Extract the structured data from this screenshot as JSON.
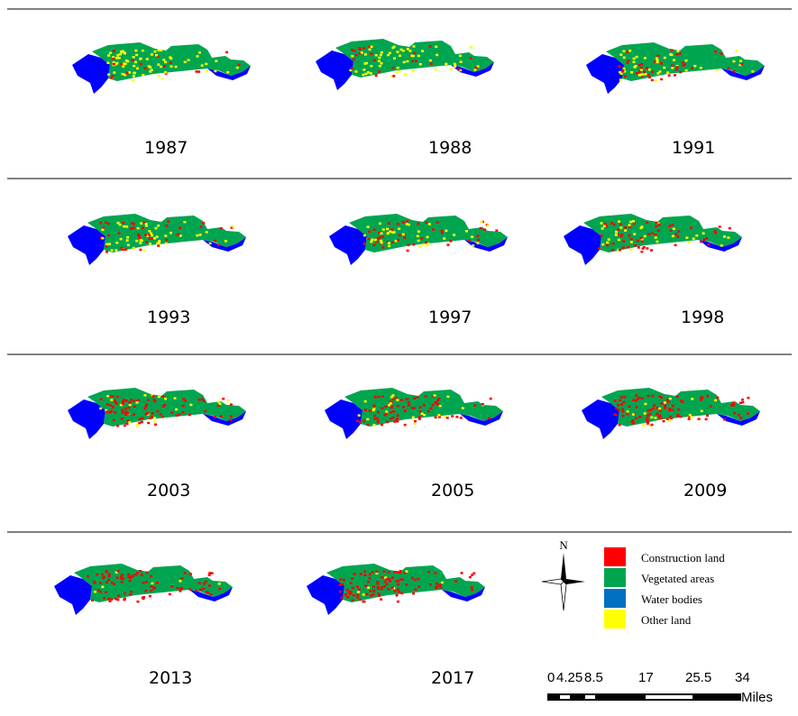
{
  "maps": [
    {
      "year": "1987"
    },
    {
      "year": "1988"
    },
    {
      "year": "1991"
    },
    {
      "year": "1993"
    },
    {
      "year": "1997"
    },
    {
      "year": "1998"
    },
    {
      "year": "2003"
    },
    {
      "year": "2005"
    },
    {
      "year": "2009"
    },
    {
      "year": "2013"
    },
    {
      "year": "2017"
    }
  ],
  "legend": {
    "items": [
      {
        "label": "Construction land",
        "color": "#ff0000"
      },
      {
        "label": "Vegetated areas",
        "color": "#00a550"
      },
      {
        "label": "Water bodies",
        "color": "#0070c0"
      },
      {
        "label": "Other land",
        "color": "#ffff00"
      }
    ]
  },
  "north": "N",
  "scale": {
    "ticks": [
      "0",
      "4.25",
      "8.5",
      "17",
      "25.5",
      "34"
    ],
    "unit": "Miles"
  }
}
